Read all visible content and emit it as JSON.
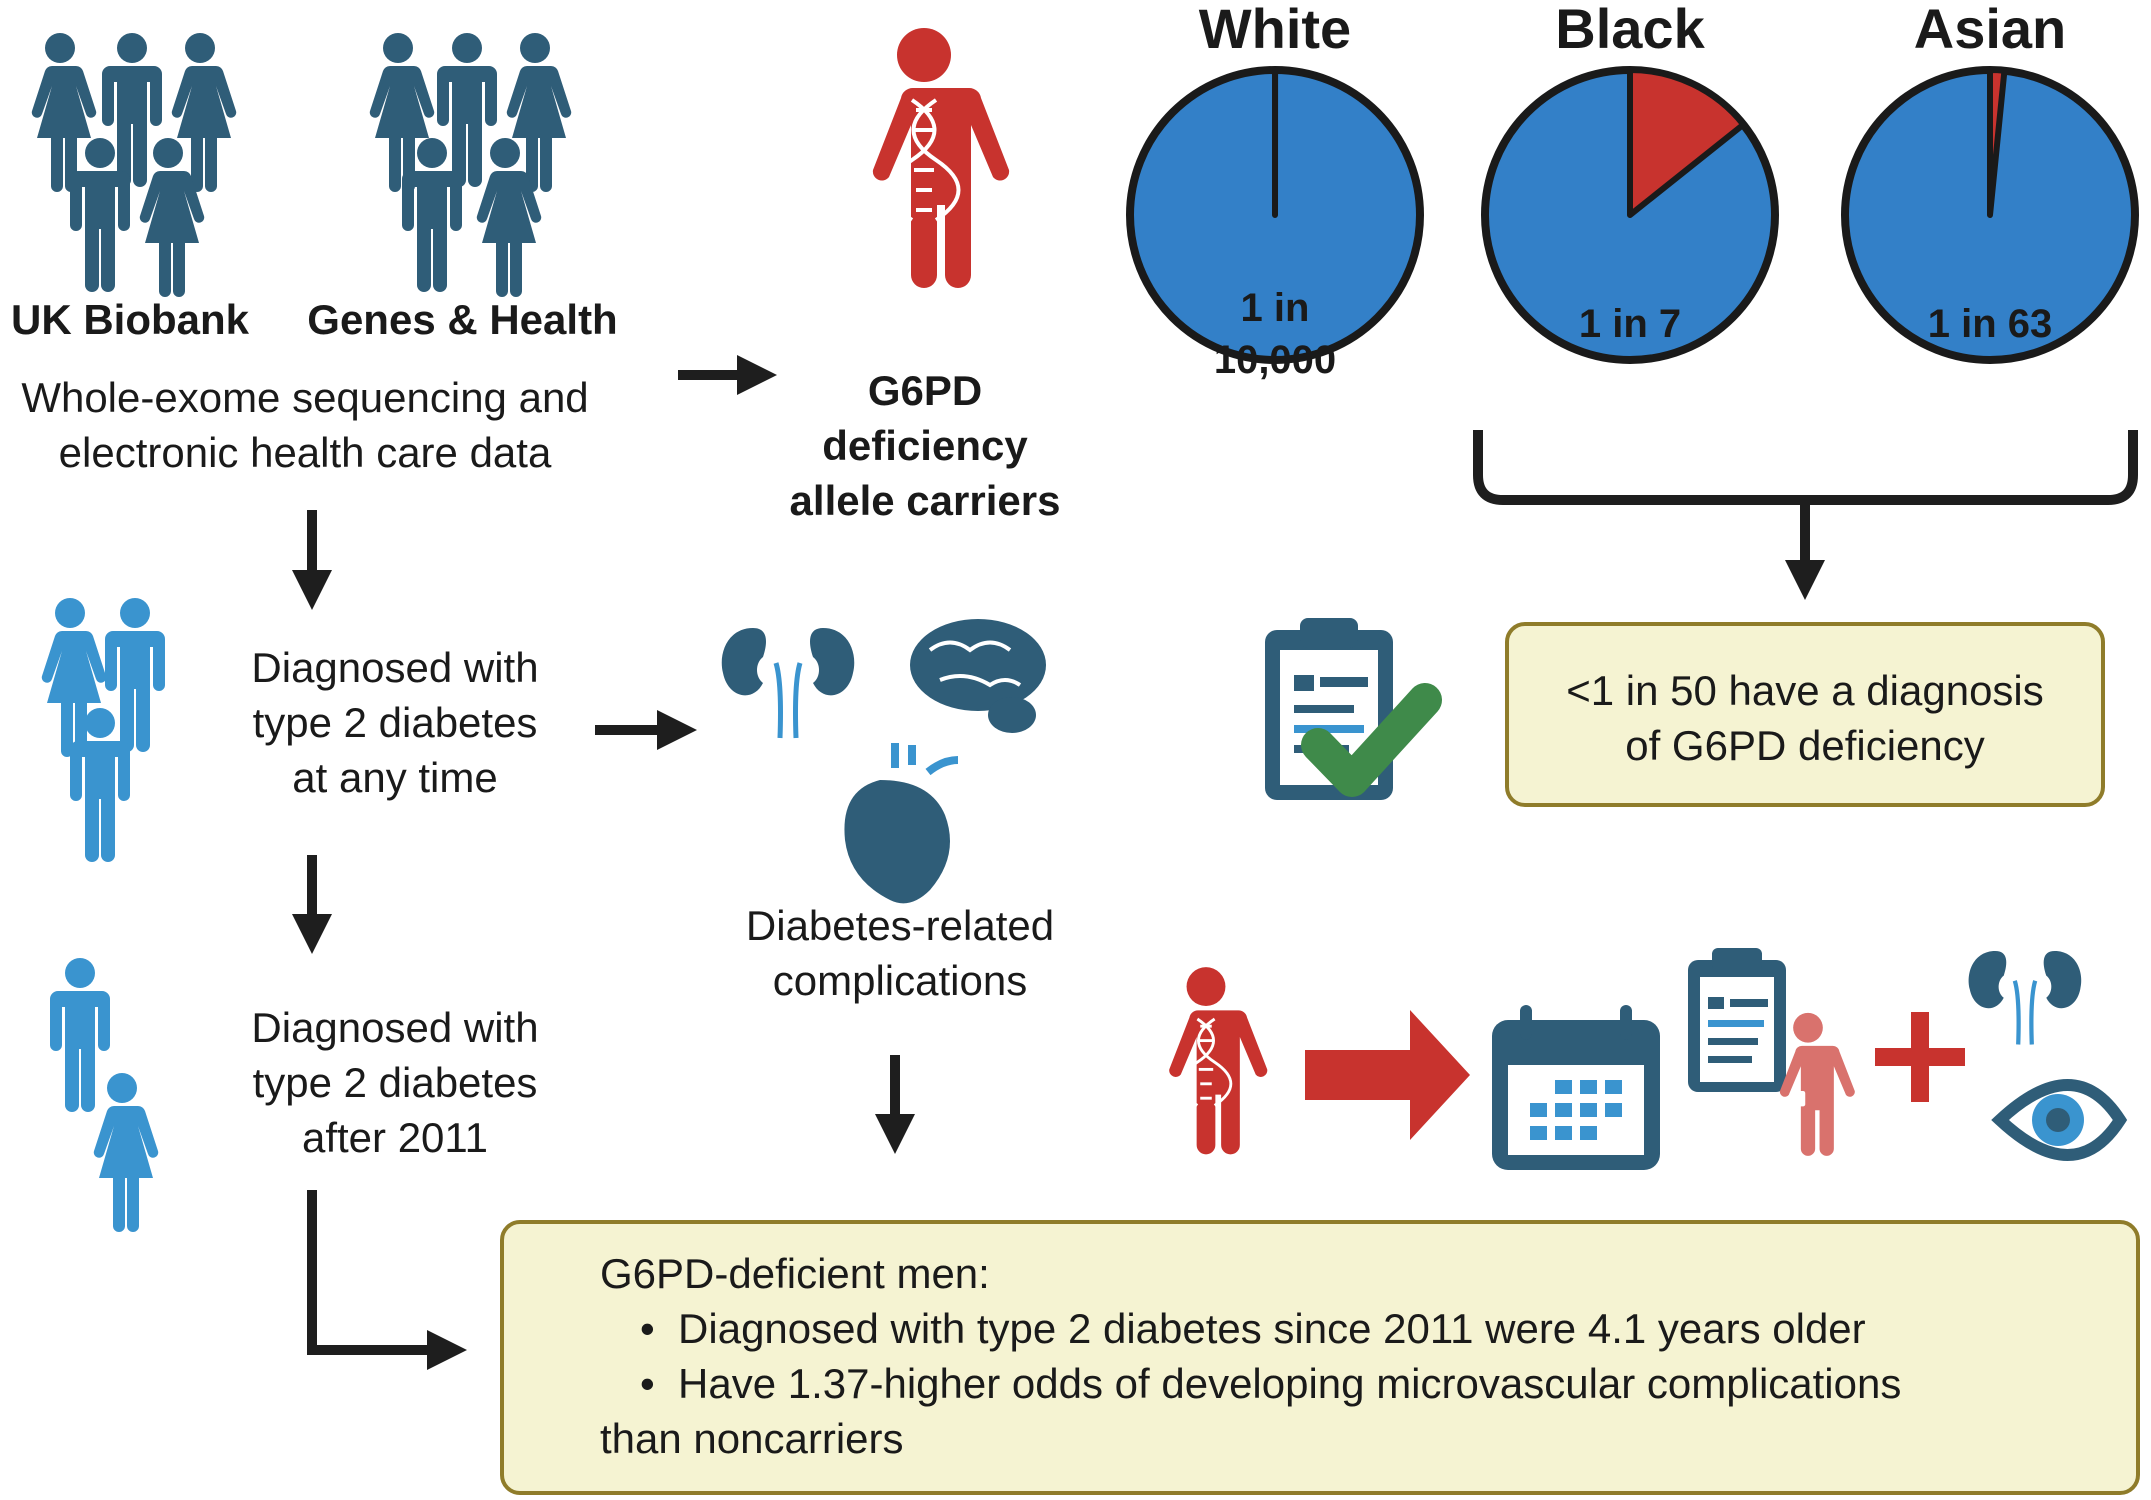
{
  "sources": {
    "uk_biobank": "UK Biobank",
    "genes_health": "Genes & Health",
    "data_line1": "Whole-exome sequencing and",
    "data_line2": "electronic health care data"
  },
  "carriers": {
    "line1": "G6PD",
    "line2": "deficiency",
    "line3": "allele carriers"
  },
  "pies": [
    {
      "title": "White",
      "label_line1": "1 in",
      "label_line2": "10,000",
      "fraction": 0.0001
    },
    {
      "title": "Black",
      "label_line1": "1 in 7",
      "label_line2": "",
      "fraction": 0.142857
    },
    {
      "title": "Asian",
      "label_line1": "1 in 63",
      "label_line2": "",
      "fraction": 0.015873
    }
  ],
  "diagnosis_box": {
    "line1": "<1 in 50 have a diagnosis",
    "line2": "of G6PD deficiency"
  },
  "t2d_any": {
    "line1": "Diagnosed with",
    "line2": "type 2 diabetes",
    "line3": "at any time"
  },
  "t2d_after": {
    "line1": "Diagnosed with",
    "line2": "type 2 diabetes",
    "line3": "after 2011"
  },
  "complications": {
    "line1": "Diabetes-related",
    "line2": "complications"
  },
  "result_box": {
    "heading": "G6PD-deficient men:",
    "bullet1": "Diagnosed with type 2 diabetes since 2011 were 4.1 years older",
    "bullet2": "Have 1.37-higher odds of developing microvascular complications",
    "bullet2_cont": "than noncarriers"
  },
  "colors": {
    "dark_blue": "#2f5d78",
    "light_blue": "#3a94cf",
    "pie_blue": "#3380c8",
    "red": "#c8332e",
    "pink": "#d9726d",
    "box_fill": "#f5f3d2",
    "box_border": "#8f7c2a",
    "check_green": "#3f8a4a"
  },
  "icons": [
    "person-icon",
    "dna-person-icon",
    "kidney-icon",
    "brain-icon",
    "heart-icon",
    "clipboard-icon",
    "check-icon",
    "calendar-icon",
    "eye-icon",
    "plus-icon",
    "arrow-icon"
  ]
}
